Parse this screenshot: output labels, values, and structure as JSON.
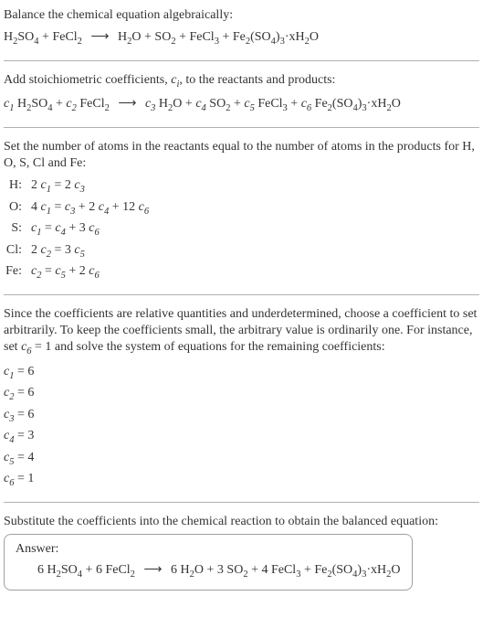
{
  "section1": {
    "intro": "Balance the chemical equation algebraically:"
  },
  "section2": {
    "intro_a": "Add stoichiometric coefficients, ",
    "intro_b": ", to the reactants and products:"
  },
  "section3": {
    "intro": "Set the number of atoms in the reactants equal to the number of atoms in the products for H, O, S, Cl and Fe:",
    "rows": [
      {
        "label": "H:",
        "eq_a": "2 ",
        "eq_b": " = 2 "
      },
      {
        "label": "O:",
        "eq_a": "4 ",
        "eq_b": " = ",
        "eq_c": " + 2 ",
        "eq_d": " + 12 "
      },
      {
        "label": "S:",
        "eq_b": " = ",
        "eq_c": " + 3 "
      },
      {
        "label": "Cl:",
        "eq_a": "2 ",
        "eq_b": " = 3 "
      },
      {
        "label": "Fe:",
        "eq_b": " = ",
        "eq_c": " + 2 "
      }
    ]
  },
  "section4": {
    "intro_a": "Since the coefficients are relative quantities and underdetermined, choose a coefficient to set arbitrarily. To keep the coefficients small, the arbitrary value is ordinarily one. For instance, set ",
    "intro_b": " = 1 and solve the system of equations for the remaining coefficients:",
    "coefs": [
      "6",
      "6",
      "6",
      "3",
      "4",
      "1"
    ]
  },
  "section5": {
    "intro": "Substitute the coefficients into the chemical reaction to obtain the balanced equation:",
    "answer_label": "Answer:",
    "coefs": [
      "6",
      "6",
      "6",
      "3",
      "4"
    ]
  },
  "c": {
    "c1": "c",
    "c2": "c",
    "c3": "c",
    "c4": "c",
    "c5": "c",
    "c6": "c",
    "ci": "c",
    "i": "i",
    "s1": "1",
    "s2": "2",
    "s3": "3",
    "s4": "4",
    "s5": "5",
    "s6": "6"
  },
  "chem": {
    "H": "H",
    "O": "O",
    "S": "S",
    "SO": "SO",
    "Fe": "Fe",
    "FeCl": "FeCl",
    "Cl": "Cl",
    "H2SO4_a": "H",
    "H2SO4_b": "SO",
    "two": "2",
    "three": "3",
    "four": "4",
    "Fe2SO43_a": "Fe",
    "Fe2SO43_b": "(SO",
    "Fe2SO43_c": ")",
    "dot": "·",
    "x": "x",
    "H2O_a": "H",
    "H2O_b": "O",
    "plus": " + ",
    "arrow": "⟶",
    "eq": " = "
  }
}
